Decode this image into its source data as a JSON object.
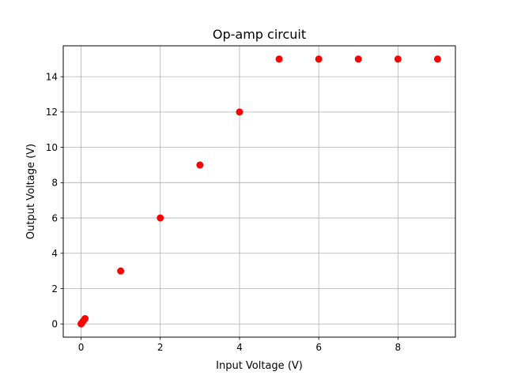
{
  "chart_data": {
    "type": "scatter",
    "title": "Op-amp circuit",
    "xlabel": "Input Voltage (V)",
    "ylabel": "Output Voltage (V)",
    "xlim": [
      -0.45,
      9.45
    ],
    "ylim": [
      -0.75,
      15.75
    ],
    "xticks": [
      0,
      2,
      4,
      6,
      8
    ],
    "yticks": [
      0,
      2,
      4,
      6,
      8,
      10,
      12,
      14
    ],
    "grid": true,
    "marker_color": "#ff0000",
    "series": [
      {
        "x": [
          0,
          0.01,
          0.02,
          0.05,
          0.1,
          1,
          2,
          3,
          4,
          5,
          6,
          7,
          8,
          9
        ],
        "y": [
          0,
          0.03,
          0.06,
          0.15,
          0.3,
          3,
          6,
          9,
          12,
          15,
          15,
          15,
          15,
          15
        ]
      }
    ]
  }
}
